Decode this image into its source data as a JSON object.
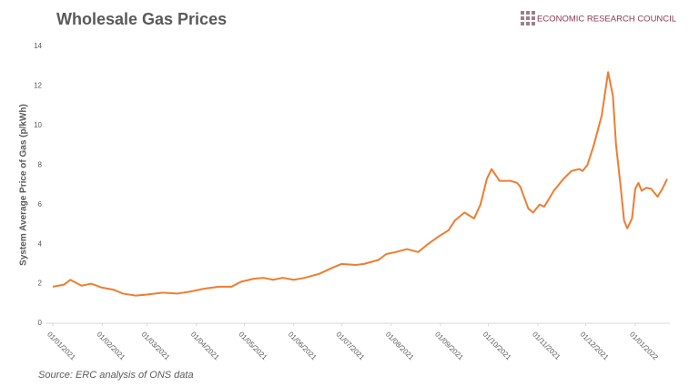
{
  "chart_data": {
    "type": "line",
    "title": "Wholesale Gas Prices",
    "brand": "ECONOMIC RESEARCH COUNCIL",
    "y_label": "System Average Price of Gas (p/kWh)",
    "source": "Source: ERC analysis of ONS data",
    "x": [
      "01/01/2021",
      "08/01/2021",
      "12/01/2021",
      "19/01/2021",
      "25/01/2021",
      "01/02/2021",
      "08/02/2021",
      "14/02/2021",
      "22/02/2021",
      "01/03/2021",
      "11/03/2021",
      "20/03/2021",
      "28/03/2021",
      "06/04/2021",
      "15/04/2021",
      "23/04/2021",
      "29/04/2021",
      "07/05/2021",
      "13/05/2021",
      "19/05/2021",
      "25/05/2021",
      "01/06/2021",
      "08/06/2021",
      "17/06/2021",
      "25/06/2021",
      "01/07/2021",
      "10/07/2021",
      "15/07/2021",
      "24/07/2021",
      "29/07/2021",
      "04/08/2021",
      "11/08/2021",
      "18/08/2021",
      "24/08/2021",
      "31/08/2021",
      "06/09/2021",
      "10/09/2021",
      "16/09/2021",
      "22/09/2021",
      "26/09/2021",
      "30/09/2021",
      "03/10/2021",
      "08/10/2021",
      "15/10/2021",
      "19/10/2021",
      "21/10/2021",
      "26/10/2021",
      "29/10/2021",
      "02/11/2021",
      "05/11/2021",
      "11/11/2021",
      "17/11/2021",
      "22/11/2021",
      "27/11/2021",
      "29/11/2021",
      "02/12/2021",
      "06/12/2021",
      "11/12/2021",
      "15/12/2021",
      "18/12/2021",
      "20/12/2021",
      "23/12/2021",
      "25/12/2021",
      "27/12/2021",
      "30/12/2021",
      "01/01/2022",
      "03/01/2022",
      "05/01/2022",
      "08/01/2022",
      "11/01/2022",
      "15/01/2022",
      "18/01/2022",
      "21/01/2022"
    ],
    "series": [
      {
        "name": "System Average Price of Gas",
        "color": "#ed7d31",
        "values": [
          1.85,
          1.95,
          2.2,
          1.9,
          2.0,
          1.8,
          1.7,
          1.5,
          1.4,
          1.45,
          1.55,
          1.5,
          1.6,
          1.75,
          1.85,
          1.85,
          2.1,
          2.25,
          2.3,
          2.2,
          2.3,
          2.2,
          2.3,
          2.5,
          2.8,
          3.0,
          2.95,
          3.0,
          3.2,
          3.5,
          3.6,
          3.75,
          3.6,
          4.0,
          4.4,
          4.7,
          5.2,
          5.6,
          5.3,
          6.0,
          7.3,
          7.8,
          7.2,
          7.2,
          7.1,
          6.9,
          5.8,
          5.6,
          6.0,
          5.9,
          6.7,
          7.3,
          7.7,
          7.8,
          7.7,
          8.0,
          9.0,
          10.5,
          12.7,
          11.5,
          9.0,
          6.8,
          5.2,
          4.8,
          5.3,
          6.8,
          7.1,
          6.7,
          6.85,
          6.8,
          6.4,
          6.8,
          7.3
        ]
      }
    ],
    "xlim": [
      "01/01/2021",
      "21/01/2022"
    ],
    "xticks": [
      "01/01/2021",
      "01/02/2021",
      "01/03/2021",
      "01/04/2021",
      "01/05/2021",
      "01/06/2021",
      "01/07/2021",
      "01/08/2021",
      "01/09/2021",
      "01/10/2021",
      "01/11/2021",
      "01/12/2021",
      "01/01/2022"
    ],
    "ylim": [
      0,
      14
    ],
    "yticks": [
      0,
      2,
      4,
      6,
      8,
      10,
      12,
      14
    ],
    "grid": false
  }
}
